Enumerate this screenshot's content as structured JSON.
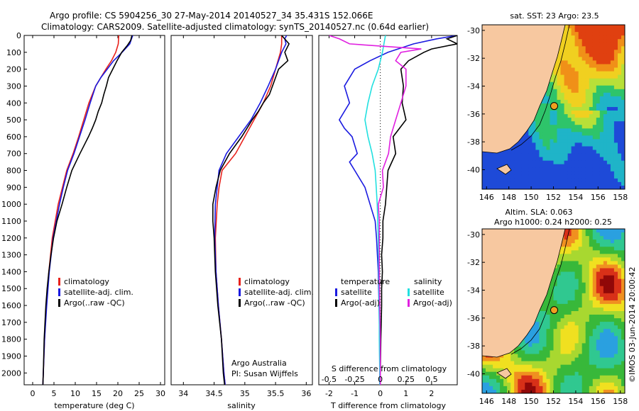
{
  "header": {
    "line1": "Argo profile: CS 5904256_30 27-May-2014 20140527_34 35.431S 152.066E",
    "line2": "Climatology: CARS2009. Satellite-adjusted climatology: synTS_20140527.nc (0.64d earlier)"
  },
  "colors": {
    "climatology": "#e8221c",
    "satellite": "#1a1ae0",
    "argo": "#000000",
    "cyan": "#22e0e0",
    "magenta": "#e020e0",
    "land": "#f7c8a0"
  },
  "chart_data": [
    {
      "type": "line",
      "title": "",
      "xlabel": "temperature (deg C)",
      "ylabel": "",
      "xlim": [
        -2,
        31
      ],
      "ylim": [
        0,
        2070
      ],
      "x_ticks": [
        "0",
        "5",
        "10",
        "15",
        "20",
        "25",
        "30"
      ],
      "y_ticks": [
        "0",
        "100",
        "200",
        "300",
        "400",
        "500",
        "600",
        "700",
        "800",
        "900",
        "1000",
        "1100",
        "1200",
        "1300",
        "1400",
        "1500",
        "1600",
        "1700",
        "1800",
        "1900",
        "2000"
      ],
      "legend": [
        "climatology",
        "satellite-adj. clim.",
        "Argo(..raw -QC)"
      ],
      "legend_position": "lower-center",
      "series": [
        {
          "name": "climatology",
          "color": "#e8221c",
          "depth": [
            0,
            50,
            100,
            150,
            200,
            300,
            400,
            500,
            600,
            700,
            800,
            900,
            1000,
            1200,
            1400,
            1600,
            1800,
            2000,
            2070
          ],
          "values": [
            20.2,
            20.1,
            19.5,
            18.5,
            17.2,
            14.8,
            13.2,
            12.0,
            10.8,
            9.5,
            8.0,
            7.0,
            6.0,
            4.6,
            3.8,
            3.2,
            2.8,
            2.5,
            2.4
          ]
        },
        {
          "name": "satellite-adj. clim.",
          "color": "#1a1ae0",
          "depth": [
            0,
            20,
            50,
            100,
            150,
            200,
            250,
            300,
            400,
            500,
            600,
            700,
            800,
            900,
            1000,
            1200,
            1400,
            1600,
            1800,
            2000,
            2070
          ],
          "values": [
            23.5,
            23.2,
            22.8,
            21.0,
            19.0,
            17.5,
            16.0,
            14.8,
            13.5,
            12.3,
            11.0,
            9.7,
            8.2,
            7.2,
            6.3,
            4.8,
            3.9,
            3.3,
            2.8,
            2.5,
            2.4
          ]
        },
        {
          "name": "Argo(..raw -QC)",
          "color": "#000000",
          "depth": [
            0,
            30,
            60,
            100,
            150,
            200,
            250,
            300,
            350,
            400,
            450,
            500,
            550,
            600,
            650,
            700,
            800,
            900,
            1000,
            1100,
            1200,
            1300,
            1400,
            1500,
            1600,
            1700,
            1800,
            1900,
            2000,
            2070
          ],
          "values": [
            23.3,
            23.0,
            22.2,
            20.9,
            19.8,
            18.8,
            17.8,
            17.3,
            16.7,
            16.2,
            15.4,
            14.8,
            14.0,
            13.1,
            12.1,
            11.1,
            9.2,
            8.0,
            6.9,
            5.7,
            4.9,
            4.3,
            3.8,
            3.4,
            3.1,
            2.9,
            2.7,
            2.6,
            2.5,
            2.4
          ]
        }
      ]
    },
    {
      "type": "line",
      "title": "",
      "xlabel": "salinity",
      "ylabel": "",
      "xlim": [
        33.8,
        36.1
      ],
      "ylim": [
        0,
        2070
      ],
      "x_ticks": [
        "34",
        "34.5",
        "35",
        "35.5",
        "36"
      ],
      "legend": [
        "climatology",
        "satellite-adj. clim.",
        "Argo(..raw -QC)"
      ],
      "legend_position": "lower-center",
      "annotation_line1": "Argo Australia",
      "annotation_line2": "PI: Susan Wijffels",
      "series": [
        {
          "name": "climatology",
          "color": "#e8221c",
          "depth": [
            0,
            50,
            100,
            200,
            300,
            400,
            500,
            600,
            700,
            800,
            900,
            1000,
            1200,
            1400,
            1600,
            1800,
            2000,
            2070
          ],
          "values": [
            35.6,
            35.6,
            35.58,
            35.5,
            35.42,
            35.3,
            35.15,
            35.0,
            34.85,
            34.63,
            34.58,
            34.55,
            34.52,
            34.53,
            34.57,
            34.62,
            34.66,
            34.68
          ]
        },
        {
          "name": "satellite-adj. clim.",
          "color": "#1a1ae0",
          "depth": [
            0,
            20,
            50,
            100,
            200,
            300,
            400,
            500,
            600,
            700,
            800,
            900,
            1000,
            1200,
            1400,
            1600,
            1800,
            2000,
            2070
          ],
          "values": [
            35.68,
            35.65,
            35.67,
            35.6,
            35.5,
            35.38,
            35.25,
            35.1,
            34.9,
            34.7,
            34.58,
            34.55,
            34.52,
            34.51,
            34.53,
            34.57,
            34.62,
            34.66,
            34.68
          ]
        },
        {
          "name": "Argo(..raw -QC)",
          "color": "#000000",
          "depth": [
            0,
            50,
            100,
            150,
            200,
            300,
            350,
            400,
            450,
            500,
            600,
            700,
            800,
            900,
            1000,
            1100,
            1200,
            1400,
            1600,
            1800,
            2000,
            2070
          ],
          "values": [
            35.6,
            35.72,
            35.65,
            35.7,
            35.55,
            35.45,
            35.4,
            35.3,
            35.22,
            35.12,
            34.95,
            34.75,
            34.6,
            34.53,
            34.48,
            34.48,
            34.5,
            34.52,
            34.56,
            34.62,
            34.65,
            34.67
          ]
        }
      ]
    },
    {
      "type": "line",
      "title": "",
      "xlabel_top_title": "S difference from climatology",
      "xlabel": "T difference from climatology",
      "ylabel": "",
      "xlim": [
        -2.4,
        3.0
      ],
      "ylim": [
        0,
        2070
      ],
      "x_ticks_T": [
        "-2",
        "-1",
        "0",
        "1",
        "2"
      ],
      "x_ticks_S": [
        "-0.5",
        "-0.25",
        "0",
        "0.25",
        "0.5"
      ],
      "legend_left_title": "temperature",
      "legend_right_title": "salinity",
      "legend": [
        "satellite",
        "Argo(-adj)",
        "satellite",
        "Argo(-adj)"
      ],
      "series": [
        {
          "name": "temperature satellite",
          "color": "#1a1ae0",
          "depth": [
            0,
            20,
            50,
            100,
            150,
            200,
            300,
            400,
            500,
            550,
            600,
            700,
            750,
            800,
            900,
            1000,
            1100,
            1200,
            1400,
            1600,
            1800,
            2000,
            2070
          ],
          "values": [
            3.0,
            2.2,
            1.3,
            0.3,
            -0.4,
            -1.0,
            -1.4,
            -1.2,
            -1.6,
            -1.4,
            -1.1,
            -0.9,
            -1.2,
            -1.0,
            -0.6,
            -0.4,
            -0.2,
            -0.15,
            -0.08,
            -0.05,
            -0.03,
            -0.02,
            -0.02
          ]
        },
        {
          "name": "temperature Argo(-adj)",
          "color": "#000000",
          "depth": [
            0,
            20,
            50,
            80,
            100,
            150,
            200,
            300,
            400,
            500,
            600,
            700,
            800,
            900,
            1000,
            1100,
            1200,
            1300,
            1400,
            1500,
            1600,
            1800,
            2000,
            2070
          ],
          "values": [
            3.0,
            2.6,
            3.0,
            2.0,
            1.7,
            1.1,
            0.8,
            0.9,
            0.85,
            1.0,
            0.5,
            0.6,
            0.3,
            0.25,
            0.2,
            0.1,
            0.1,
            0.05,
            0.08,
            0.05,
            0.05,
            0.02,
            0.0,
            0.0
          ]
        },
        {
          "name": "salinity satellite",
          "color": "#22e0e0",
          "depth": [
            0,
            100,
            200,
            300,
            400,
            500,
            600,
            700,
            800,
            900,
            1000,
            1200,
            1400,
            1600,
            1800,
            2000,
            2070
          ],
          "values": [
            0.05,
            0.02,
            -0.02,
            -0.08,
            -0.12,
            -0.15,
            -0.12,
            -0.08,
            -0.05,
            -0.04,
            -0.03,
            -0.02,
            -0.015,
            -0.01,
            -0.01,
            -0.005,
            -0.005
          ]
        },
        {
          "name": "salinity Argo(-adj)",
          "color": "#e020e0",
          "depth": [
            0,
            20,
            50,
            80,
            100,
            150,
            200,
            300,
            400,
            500,
            600,
            700,
            800,
            900,
            1000,
            1100,
            1200,
            1400,
            1600,
            1800,
            2000,
            2070
          ],
          "values": [
            -0.5,
            -0.4,
            -0.3,
            0.4,
            0.2,
            0.15,
            0.25,
            0.25,
            0.2,
            0.15,
            0.1,
            0.08,
            0.02,
            0.03,
            -0.02,
            -0.01,
            -0.01,
            -0.01,
            -0.005,
            0.0,
            0.0,
            0.0
          ]
        }
      ]
    },
    {
      "type": "heatmap",
      "title": "sat. SST: 23 Argo: 23.5",
      "xlim": [
        145.6,
        158.4
      ],
      "ylim": [
        -41.4,
        -29.6
      ],
      "x_ticks": [
        "146",
        "148",
        "150",
        "152",
        "154",
        "156",
        "158"
      ],
      "y_ticks": [
        "-30",
        "-32",
        "-34",
        "-36",
        "-38",
        "-40"
      ],
      "argo_lon": 152.066,
      "argo_lat": -35.431
    },
    {
      "type": "heatmap",
      "title_line1": "Altim. SLA: 0.063",
      "title_line2": "Argo h1000: 0.24 h2000: 0.25",
      "xlim": [
        145.6,
        158.4
      ],
      "ylim": [
        -41.4,
        -29.6
      ],
      "x_ticks": [
        "146",
        "148",
        "150",
        "152",
        "154",
        "156",
        "158"
      ],
      "y_ticks": [
        "-30",
        "-32",
        "-34",
        "-36",
        "-38",
        "-40"
      ],
      "argo_lon": 152.066,
      "argo_lat": -35.431
    }
  ],
  "footer": {
    "stamp": "©IMOS 03-Jun-2014 20:00:42"
  }
}
